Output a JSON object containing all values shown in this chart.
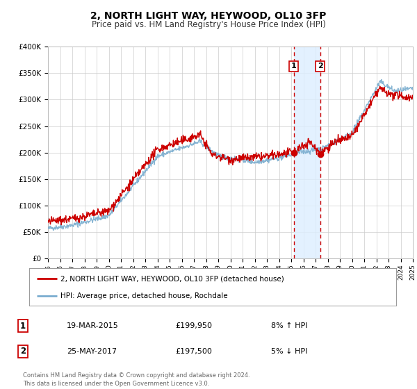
{
  "title": "2, NORTH LIGHT WAY, HEYWOOD, OL10 3FP",
  "subtitle": "Price paid vs. HM Land Registry's House Price Index (HPI)",
  "legend_entry1": "2, NORTH LIGHT WAY, HEYWOOD, OL10 3FP (detached house)",
  "legend_entry2": "HPI: Average price, detached house, Rochdale",
  "transaction1_date": "19-MAR-2015",
  "transaction1_price": "£199,950",
  "transaction1_hpi": "8% ↑ HPI",
  "transaction2_date": "25-MAY-2017",
  "transaction2_price": "£197,500",
  "transaction2_hpi": "5% ↓ HPI",
  "footer1": "Contains HM Land Registry data © Crown copyright and database right 2024.",
  "footer2": "This data is licensed under the Open Government Licence v3.0.",
  "vline1_x": 2015.21,
  "vline2_x": 2017.39,
  "point1_x": 2015.21,
  "point1_y": 199950,
  "point2_x": 2017.39,
  "point2_y": 197500,
  "color_red": "#cc0000",
  "color_blue": "#7aadcf",
  "color_shade": "#ddeeff",
  "ylim": [
    0,
    400000
  ],
  "xlim": [
    1995,
    2025
  ],
  "background_color": "#ffffff"
}
